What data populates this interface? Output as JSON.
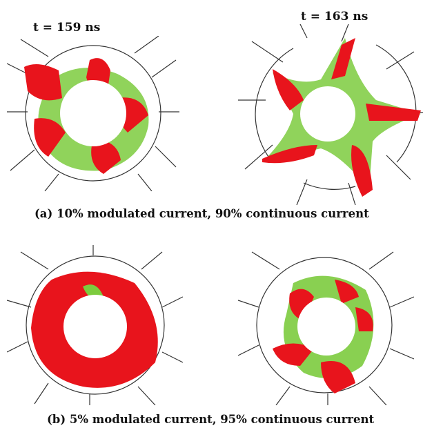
{
  "figure": {
    "time_labels": {
      "left": "t = 159 ns",
      "right": "t = 163 ns"
    },
    "captions": {
      "a": "(a) 10% modulated current, 90% continuous current",
      "b": "(b) 5% modulated current, 95% continuous current"
    },
    "colors": {
      "electron_core": "#e8141c",
      "electron_halo": "#7ccb3e",
      "structure": "#333333"
    }
  }
}
